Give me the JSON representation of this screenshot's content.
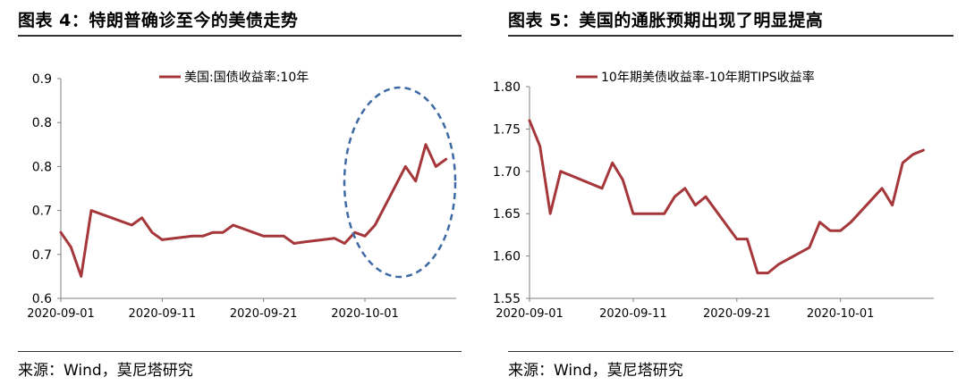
{
  "figures": [
    {
      "title": "图表 4：特朗普确诊至今的美债走势",
      "source": "来源：Wind，莫尼塔研究"
    },
    {
      "title": "图表 5：美国的通胀预期出现了明显提高",
      "source": "来源：Wind，莫尼塔研究"
    }
  ],
  "chart_data": [
    {
      "type": "line",
      "title": "",
      "xlabel": "",
      "ylabel": "",
      "x_ticks": [
        "2020-09-01",
        "2020-09-11",
        "2020-09-21",
        "2020-10-01"
      ],
      "y_ticks": [
        "0.9",
        "0.8",
        "0.8",
        "0.7",
        "0.7",
        "0.6"
      ],
      "ylim": [
        0.6,
        0.9
      ],
      "legend": "top-center",
      "grid": false,
      "annotation": "dashed-ellipse",
      "colors": {
        "series": "#a5373a",
        "annotation": "#3e6aa4"
      },
      "series": [
        {
          "name": "美国:国债收益率:10年",
          "points": [
            [
              "2020-09-01",
              0.69
            ],
            [
              "2020-09-02",
              0.67
            ],
            [
              "2020-09-03",
              0.63
            ],
            [
              "2020-09-04",
              0.72
            ],
            [
              "2020-09-08",
              0.7
            ],
            [
              "2020-09-09",
              0.71
            ],
            [
              "2020-09-10",
              0.69
            ],
            [
              "2020-09-11",
              0.68
            ],
            [
              "2020-09-14",
              0.685
            ],
            [
              "2020-09-15",
              0.685
            ],
            [
              "2020-09-16",
              0.69
            ],
            [
              "2020-09-17",
              0.69
            ],
            [
              "2020-09-18",
              0.7
            ],
            [
              "2020-09-21",
              0.685
            ],
            [
              "2020-09-22",
              0.685
            ],
            [
              "2020-09-23",
              0.685
            ],
            [
              "2020-09-24",
              0.675
            ],
            [
              "2020-09-25",
              0.677
            ],
            [
              "2020-09-28",
              0.682
            ],
            [
              "2020-09-29",
              0.675
            ],
            [
              "2020-09-30",
              0.69
            ],
            [
              "2020-10-01",
              0.685
            ],
            [
              "2020-10-02",
              0.7
            ],
            [
              "2020-10-05",
              0.78
            ],
            [
              "2020-10-06",
              0.76
            ],
            [
              "2020-10-07",
              0.81
            ],
            [
              "2020-10-08",
              0.78
            ],
            [
              "2020-10-09",
              0.79
            ]
          ]
        }
      ]
    },
    {
      "type": "line",
      "title": "",
      "xlabel": "",
      "ylabel": "",
      "x_ticks": [
        "2020-09-01",
        "2020-09-11",
        "2020-09-21",
        "2020-10-01"
      ],
      "y_ticks": [
        "1.80",
        "1.75",
        "1.70",
        "1.65",
        "1.60",
        "1.55"
      ],
      "ylim": [
        1.55,
        1.8
      ],
      "legend": "top-center",
      "grid": false,
      "colors": {
        "series": "#a5373a"
      },
      "series": [
        {
          "name": "10年期美债收益率-10年期TIPS收益率",
          "points": [
            [
              "2020-09-01",
              1.76
            ],
            [
              "2020-09-02",
              1.73
            ],
            [
              "2020-09-03",
              1.65
            ],
            [
              "2020-09-04",
              1.7
            ],
            [
              "2020-09-08",
              1.68
            ],
            [
              "2020-09-09",
              1.71
            ],
            [
              "2020-09-10",
              1.69
            ],
            [
              "2020-09-11",
              1.65
            ],
            [
              "2020-09-14",
              1.65
            ],
            [
              "2020-09-15",
              1.67
            ],
            [
              "2020-09-16",
              1.68
            ],
            [
              "2020-09-17",
              1.66
            ],
            [
              "2020-09-18",
              1.67
            ],
            [
              "2020-09-21",
              1.62
            ],
            [
              "2020-09-22",
              1.62
            ],
            [
              "2020-09-23",
              1.58
            ],
            [
              "2020-09-24",
              1.58
            ],
            [
              "2020-09-25",
              1.59
            ],
            [
              "2020-09-28",
              1.61
            ],
            [
              "2020-09-29",
              1.64
            ],
            [
              "2020-09-30",
              1.63
            ],
            [
              "2020-10-01",
              1.63
            ],
            [
              "2020-10-02",
              1.64
            ],
            [
              "2020-10-05",
              1.68
            ],
            [
              "2020-10-06",
              1.66
            ],
            [
              "2020-10-07",
              1.71
            ],
            [
              "2020-10-08",
              1.72
            ],
            [
              "2020-10-09",
              1.725
            ]
          ]
        }
      ]
    }
  ]
}
